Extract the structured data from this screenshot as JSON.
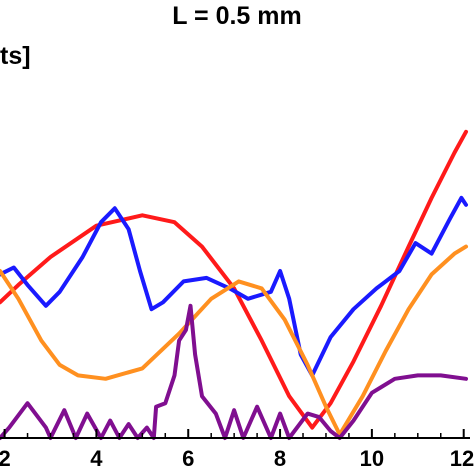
{
  "chart_data": {
    "type": "line",
    "title": "L = 0.5 mm",
    "ylabel_fragment": "ts]",
    "xlabel": "",
    "xlim": [
      1.9,
      12.05
    ],
    "ylim": [
      0,
      1
    ],
    "x_ticks": [
      "2",
      "4",
      "6",
      "8",
      "10",
      "12"
    ],
    "series": [
      {
        "color": "#ff1a1a",
        "points": [
          [
            1.9,
            0.39
          ],
          [
            2.3,
            0.44
          ],
          [
            3.0,
            0.52
          ],
          [
            4.0,
            0.61
          ],
          [
            5.0,
            0.64
          ],
          [
            5.7,
            0.62
          ],
          [
            6.3,
            0.55
          ],
          [
            7.0,
            0.43
          ],
          [
            7.6,
            0.28
          ],
          [
            8.2,
            0.12
          ],
          [
            8.7,
            0.03
          ],
          [
            9.1,
            0.1
          ],
          [
            9.6,
            0.22
          ],
          [
            10.2,
            0.38
          ],
          [
            10.8,
            0.55
          ],
          [
            11.3,
            0.69
          ],
          [
            11.8,
            0.82
          ],
          [
            12.05,
            0.88
          ]
        ]
      },
      {
        "color": "#1a1aff",
        "points": [
          [
            1.9,
            0.47
          ],
          [
            2.2,
            0.49
          ],
          [
            2.5,
            0.44
          ],
          [
            2.9,
            0.38
          ],
          [
            3.2,
            0.42
          ],
          [
            3.7,
            0.52
          ],
          [
            4.1,
            0.62
          ],
          [
            4.4,
            0.66
          ],
          [
            4.7,
            0.6
          ],
          [
            4.95,
            0.48
          ],
          [
            5.2,
            0.37
          ],
          [
            5.45,
            0.39
          ],
          [
            5.9,
            0.45
          ],
          [
            6.4,
            0.46
          ],
          [
            6.9,
            0.43
          ],
          [
            7.3,
            0.4
          ],
          [
            7.8,
            0.42
          ],
          [
            8.0,
            0.48
          ],
          [
            8.2,
            0.4
          ],
          [
            8.45,
            0.24
          ],
          [
            8.7,
            0.18
          ],
          [
            9.1,
            0.29
          ],
          [
            9.6,
            0.37
          ],
          [
            10.1,
            0.43
          ],
          [
            10.6,
            0.48
          ],
          [
            10.95,
            0.56
          ],
          [
            11.3,
            0.53
          ],
          [
            11.7,
            0.63
          ],
          [
            11.95,
            0.69
          ],
          [
            12.05,
            0.67
          ]
        ]
      },
      {
        "color": "#ff9020",
        "points": [
          [
            1.9,
            0.48
          ],
          [
            2.3,
            0.4
          ],
          [
            2.8,
            0.28
          ],
          [
            3.2,
            0.21
          ],
          [
            3.6,
            0.18
          ],
          [
            4.2,
            0.17
          ],
          [
            5.0,
            0.2
          ],
          [
            5.8,
            0.3
          ],
          [
            6.5,
            0.4
          ],
          [
            7.1,
            0.45
          ],
          [
            7.6,
            0.43
          ],
          [
            8.1,
            0.34
          ],
          [
            8.6,
            0.21
          ],
          [
            9.0,
            0.09
          ],
          [
            9.3,
            0.01
          ],
          [
            9.8,
            0.12
          ],
          [
            10.3,
            0.25
          ],
          [
            10.8,
            0.37
          ],
          [
            11.3,
            0.47
          ],
          [
            11.8,
            0.53
          ],
          [
            12.05,
            0.55
          ]
        ]
      },
      {
        "color": "#800f90",
        "points": [
          [
            1.9,
            0.0
          ],
          [
            2.1,
            0.03
          ],
          [
            2.5,
            0.1
          ],
          [
            2.9,
            0.03
          ],
          [
            3.0,
            0.0
          ],
          [
            3.3,
            0.08
          ],
          [
            3.55,
            0.0
          ],
          [
            3.8,
            0.07
          ],
          [
            4.1,
            0.0
          ],
          [
            4.3,
            0.05
          ],
          [
            4.5,
            0.0
          ],
          [
            4.7,
            0.04
          ],
          [
            4.9,
            0.0
          ],
          [
            5.1,
            0.03
          ],
          [
            5.25,
            0.0
          ],
          [
            5.3,
            0.09
          ],
          [
            5.5,
            0.1
          ],
          [
            5.7,
            0.18
          ],
          [
            5.8,
            0.28
          ],
          [
            5.95,
            0.31
          ],
          [
            6.05,
            0.38
          ],
          [
            6.15,
            0.24
          ],
          [
            6.3,
            0.12
          ],
          [
            6.6,
            0.07
          ],
          [
            6.8,
            0.0
          ],
          [
            7.0,
            0.08
          ],
          [
            7.2,
            0.0
          ],
          [
            7.5,
            0.09
          ],
          [
            7.8,
            0.0
          ],
          [
            8.0,
            0.07
          ],
          [
            8.2,
            0.0
          ],
          [
            8.6,
            0.07
          ],
          [
            8.85,
            0.06
          ],
          [
            9.1,
            0.02
          ],
          [
            9.3,
            0.0
          ],
          [
            9.6,
            0.05
          ],
          [
            10.0,
            0.13
          ],
          [
            10.5,
            0.17
          ],
          [
            11.0,
            0.18
          ],
          [
            11.5,
            0.18
          ],
          [
            12.05,
            0.17
          ]
        ]
      }
    ]
  }
}
